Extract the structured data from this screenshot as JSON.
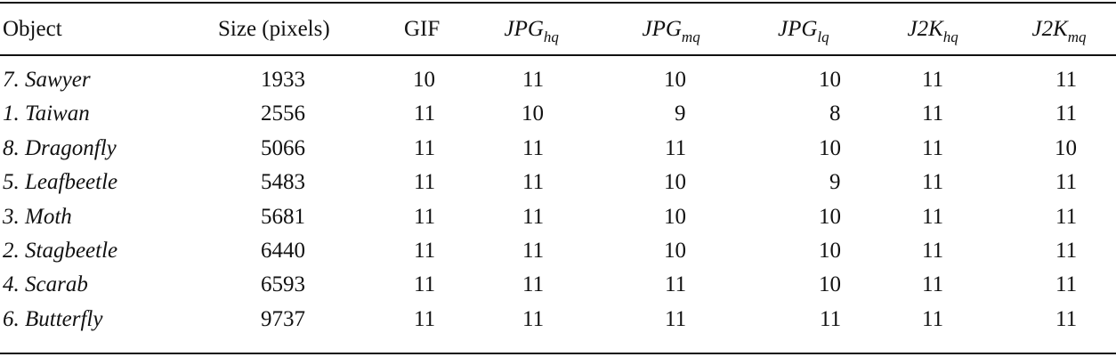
{
  "table": {
    "header": [
      {
        "text": "Object"
      },
      {
        "text": "Size (pixels)"
      },
      {
        "text": "GIF"
      },
      {
        "text": "JPG",
        "sub": "hq"
      },
      {
        "text": "JPG",
        "sub": "mq"
      },
      {
        "text": "JPG",
        "sub": "lq"
      },
      {
        "text": "J2K",
        "sub": "hq"
      },
      {
        "text": "J2K",
        "sub": "mq"
      }
    ],
    "rows": [
      [
        "7. Sawyer",
        1933,
        10,
        11,
        10,
        10,
        11,
        11
      ],
      [
        "1. Taiwan",
        2556,
        11,
        10,
        9,
        8,
        11,
        11
      ],
      [
        "8. Dragonfly",
        5066,
        11,
        11,
        11,
        10,
        11,
        10
      ],
      [
        "5. Leafbeetle",
        5483,
        11,
        11,
        10,
        9,
        11,
        11
      ],
      [
        "3. Moth",
        5681,
        11,
        11,
        10,
        10,
        11,
        11
      ],
      [
        "2. Stagbeetle",
        6440,
        11,
        11,
        10,
        10,
        11,
        11
      ],
      [
        "4. Scarab",
        6593,
        11,
        11,
        11,
        10,
        11,
        11
      ],
      [
        "6. Butterfly",
        9737,
        11,
        11,
        11,
        11,
        11,
        11
      ]
    ]
  }
}
